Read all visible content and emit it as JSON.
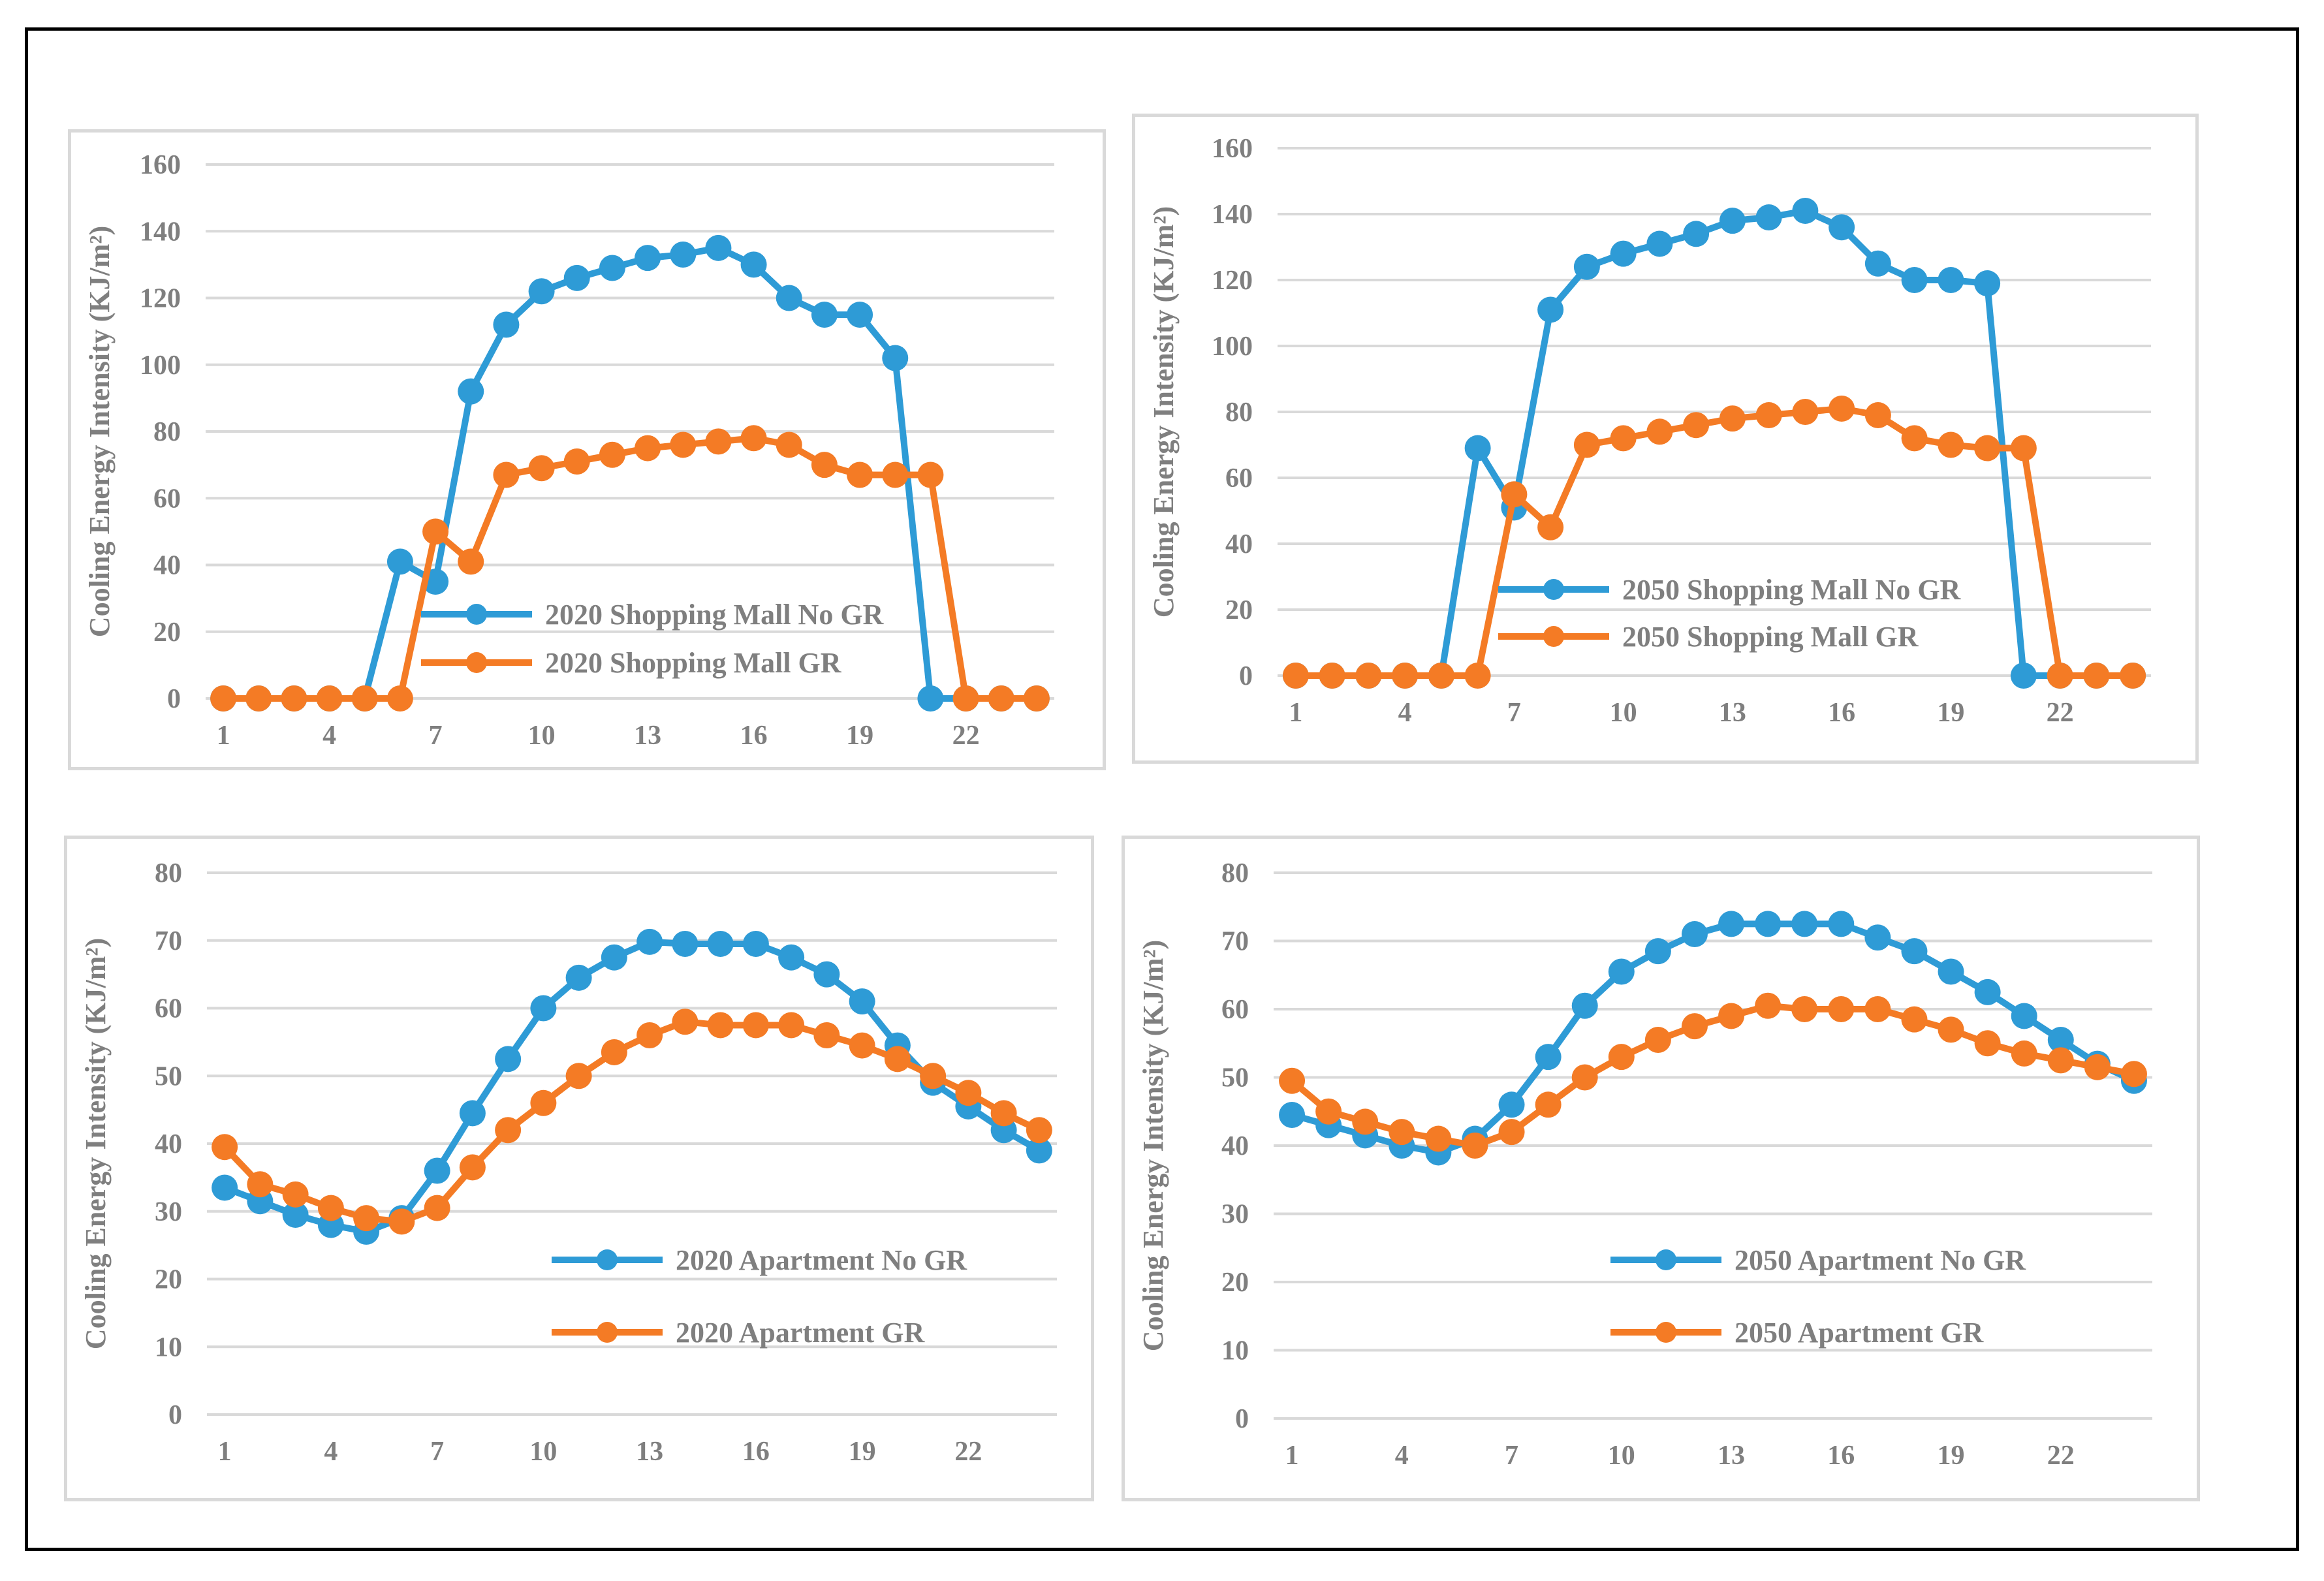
{
  "figure": {
    "colors": {
      "no_gr": "#2e9bd6",
      "gr": "#f47b25",
      "grid": "#d9d9d9",
      "text": "#7f7f7f"
    },
    "ylabel": "Cooling Energy Intensity (KJ/m²)",
    "x_tick_labels": [
      "1",
      "4",
      "7",
      "10",
      "13",
      "16",
      "19",
      "22"
    ]
  },
  "chart_data": [
    {
      "type": "line",
      "ylabel": "Cooling Energy Intensity (KJ/m²)",
      "xlabel": "",
      "x": [
        1,
        2,
        3,
        4,
        5,
        6,
        7,
        8,
        9,
        10,
        11,
        12,
        13,
        14,
        15,
        16,
        17,
        18,
        19,
        20,
        21,
        22,
        23,
        24
      ],
      "ylim": [
        0,
        160
      ],
      "yticks": [
        0,
        20,
        40,
        60,
        80,
        100,
        120,
        140,
        160
      ],
      "legend_position": "center-left",
      "series": [
        {
          "name": "2020 Shopping Mall No GR",
          "color": "#2e9bd6",
          "values": [
            0,
            0,
            0,
            0,
            0,
            41,
            35,
            92,
            112,
            122,
            126,
            129,
            132,
            133,
            135,
            130,
            120,
            115,
            115,
            102,
            0,
            0,
            0,
            0
          ]
        },
        {
          "name": "2020 Shopping Mall GR",
          "color": "#f47b25",
          "values": [
            0,
            0,
            0,
            0,
            0,
            0,
            50,
            41,
            67,
            69,
            71,
            73,
            75,
            76,
            77,
            78,
            76,
            70,
            67,
            67,
            67,
            0,
            0,
            0
          ]
        }
      ]
    },
    {
      "type": "line",
      "ylabel": "Cooling Energy Intensity (KJ/m²)",
      "xlabel": "",
      "x": [
        1,
        2,
        3,
        4,
        5,
        6,
        7,
        8,
        9,
        10,
        11,
        12,
        13,
        14,
        15,
        16,
        17,
        18,
        19,
        20,
        21,
        22,
        23,
        24
      ],
      "ylim": [
        0,
        160
      ],
      "yticks": [
        0,
        20,
        40,
        60,
        80,
        100,
        120,
        140,
        160
      ],
      "legend_position": "center-left",
      "series": [
        {
          "name": "2050 Shopping Mall No GR",
          "color": "#2e9bd6",
          "values": [
            0,
            0,
            0,
            0,
            0,
            69,
            51,
            111,
            124,
            128,
            131,
            134,
            138,
            139,
            141,
            136,
            125,
            120,
            120,
            119,
            0,
            0,
            0,
            0
          ]
        },
        {
          "name": "2050 Shopping Mall GR",
          "color": "#f47b25",
          "values": [
            0,
            0,
            0,
            0,
            0,
            0,
            55,
            45,
            70,
            72,
            74,
            76,
            78,
            79,
            80,
            81,
            79,
            72,
            70,
            69,
            69,
            0,
            0,
            0
          ]
        }
      ]
    },
    {
      "type": "line",
      "ylabel": "Cooling Energy Intensity (KJ/m²)",
      "xlabel": "",
      "x": [
        1,
        2,
        3,
        4,
        5,
        6,
        7,
        8,
        9,
        10,
        11,
        12,
        13,
        14,
        15,
        16,
        17,
        18,
        19,
        20,
        21,
        22,
        23,
        24
      ],
      "ylim": [
        0,
        80
      ],
      "yticks": [
        0,
        10,
        20,
        30,
        40,
        50,
        60,
        70,
        80
      ],
      "legend_position": "bottom-right",
      "series": [
        {
          "name": "2020 Apartment No GR",
          "color": "#2e9bd6",
          "values": [
            33.5,
            31.5,
            29.5,
            28,
            27,
            29,
            36,
            44.5,
            52.5,
            60,
            64.5,
            67.5,
            69.8,
            69.5,
            69.5,
            69.5,
            67.5,
            65,
            61,
            54.5,
            49,
            45.5,
            42,
            39
          ]
        },
        {
          "name": "2020 Apartment GR",
          "color": "#f47b25",
          "values": [
            39.5,
            34,
            32.5,
            30.5,
            29,
            28.5,
            30.5,
            36.5,
            42,
            46,
            50,
            53.5,
            56,
            58,
            57.5,
            57.5,
            57.5,
            56,
            54.5,
            52.5,
            50,
            47.5,
            44.5,
            42
          ]
        }
      ]
    },
    {
      "type": "line",
      "ylabel": "Cooling Energy Intensity (KJ/m²)",
      "xlabel": "",
      "x": [
        1,
        2,
        3,
        4,
        5,
        6,
        7,
        8,
        9,
        10,
        11,
        12,
        13,
        14,
        15,
        16,
        17,
        18,
        19,
        20,
        21,
        22,
        23,
        24
      ],
      "ylim": [
        0,
        80
      ],
      "yticks": [
        0,
        10,
        20,
        30,
        40,
        50,
        60,
        70,
        80
      ],
      "legend_position": "bottom-right",
      "series": [
        {
          "name": "2050 Apartment No GR",
          "color": "#2e9bd6",
          "values": [
            44.5,
            43,
            41.5,
            40,
            39,
            41,
            46,
            53,
            60.5,
            65.5,
            68.5,
            71,
            72.5,
            72.5,
            72.5,
            72.5,
            70.5,
            68.5,
            65.5,
            62.5,
            59,
            55.5,
            52,
            49.5
          ]
        },
        {
          "name": "2050 Apartment GR",
          "color": "#f47b25",
          "values": [
            49.5,
            45,
            43.5,
            42,
            41,
            40,
            42,
            46,
            50,
            53,
            55.5,
            57.5,
            59,
            60.5,
            60,
            60,
            60,
            58.5,
            57,
            55,
            53.5,
            52.5,
            51.5,
            50.5
          ]
        }
      ]
    }
  ]
}
